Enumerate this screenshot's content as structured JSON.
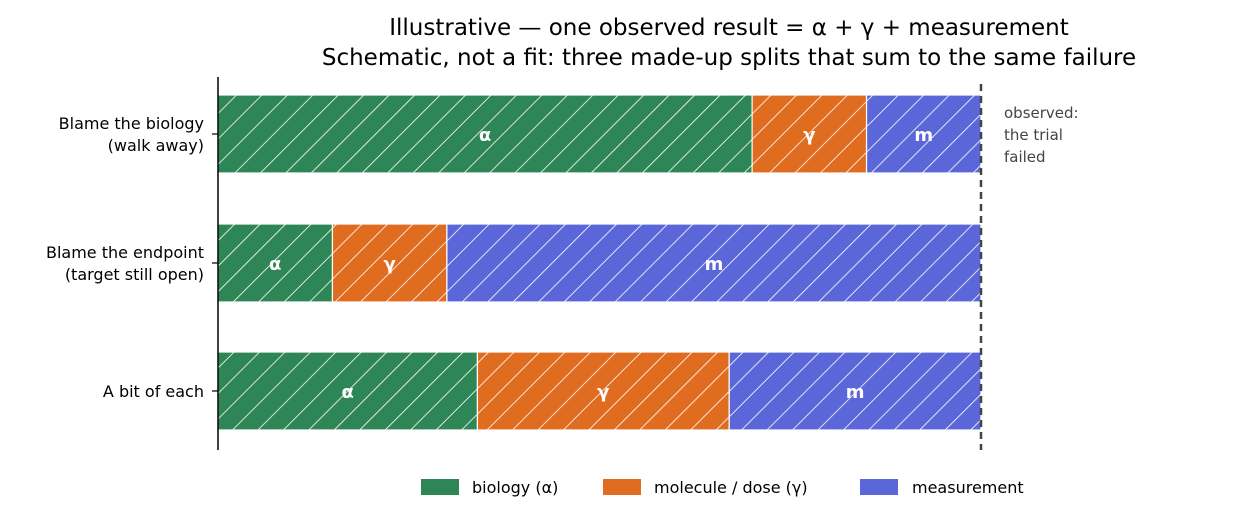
{
  "chart_data": {
    "type": "bar",
    "orientation": "horizontal",
    "stacked": true,
    "title": "Illustrative — one observed result  =  α  +  γ  +  measurement",
    "subtitle": "Schematic, not a fit: three made-up splits that sum to the same failure",
    "xlabel": "",
    "ylabel": "",
    "xlim": [
      0,
      1
    ],
    "grid": false,
    "legend_position": "bottom",
    "categories": [
      [
        "Blame the biology",
        "(walk away)"
      ],
      [
        "Blame the endpoint",
        "(target still open)"
      ],
      [
        "A bit of each"
      ]
    ],
    "series": [
      {
        "name": "biology (α)",
        "short": "α",
        "color": "#2e8555",
        "values": [
          0.7,
          0.15,
          0.34
        ]
      },
      {
        "name": "molecule / dose (γ)",
        "short": "γ",
        "color": "#e06c20",
        "values": [
          0.15,
          0.15,
          0.33
        ]
      },
      {
        "name": "measurement",
        "short": "m",
        "color": "#5b67d8",
        "values": [
          0.15,
          0.7,
          0.33
        ]
      }
    ],
    "reference_line": {
      "x": 1.0,
      "style": "dashed",
      "label": [
        "observed:",
        "the trial",
        "failed"
      ]
    }
  }
}
